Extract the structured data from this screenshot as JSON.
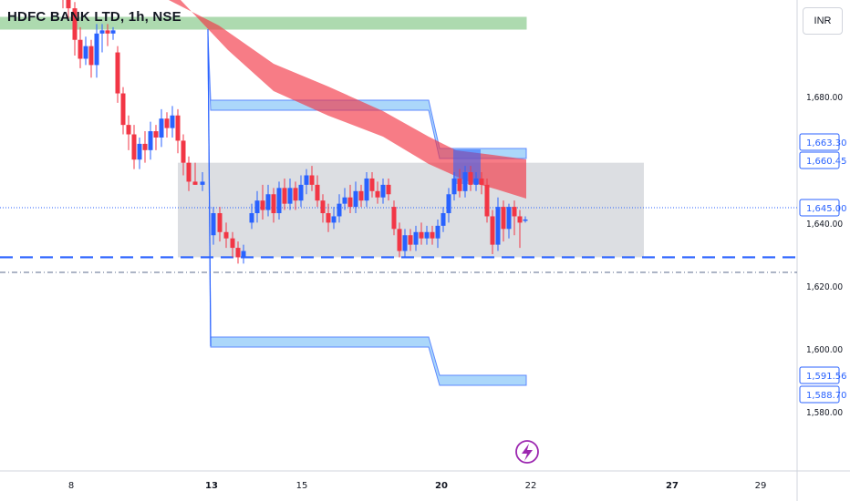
{
  "header": {
    "title": "HDFC BANK LTD, 1h, NSE"
  },
  "currency": "INR",
  "colors": {
    "up": "#2962ff",
    "down": "#f23645",
    "ribbon": "#f23645",
    "channel": "#2962ff",
    "zone_green": "#4caf50",
    "range_box": "#b2b5be",
    "dash": "#2962ff"
  },
  "chart_data": {
    "type": "candlestick",
    "y_tick_labels": [
      "1,680.00",
      "1,640.00",
      "1,620.00",
      "1,600.00",
      "1,580.00"
    ],
    "x_tick_labels": [
      "8",
      "13",
      "15",
      "20",
      "22",
      "27",
      "29"
    ],
    "price_badges": [
      {
        "label": "1,663.30",
        "style": "outline"
      },
      {
        "label": "1,660.45",
        "style": "outline"
      },
      {
        "label": "1,645.00",
        "style": "outline"
      },
      {
        "label": "1,591.56",
        "style": "outline"
      },
      {
        "label": "1,588.70",
        "style": "outline"
      }
    ],
    "levels": {
      "support_dashed": 1629,
      "reference_line": 1625,
      "range_box": {
        "low": 1629,
        "high": 1659
      }
    },
    "icons": [
      "lightning-icon"
    ]
  }
}
